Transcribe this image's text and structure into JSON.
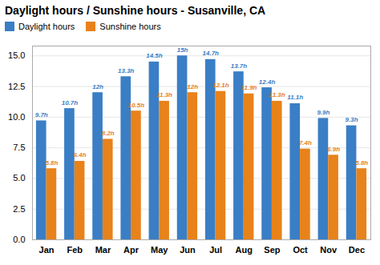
{
  "chart_data": {
    "type": "bar",
    "title": "Daylight hours / Sunshine hours - Susanville, CA",
    "categories": [
      "Jan",
      "Feb",
      "Mar",
      "Apr",
      "May",
      "Jun",
      "Jul",
      "Aug",
      "Sep",
      "Oct",
      "Nov",
      "Dec"
    ],
    "series": [
      {
        "name": "Daylight hours",
        "color": "#3a7ec6",
        "values": [
          9.7,
          10.7,
          12.0,
          13.3,
          14.5,
          15.0,
          14.7,
          13.7,
          12.4,
          11.1,
          9.9,
          9.3
        ],
        "value_labels": [
          "9.7h",
          "10.7h",
          "12h",
          "13.3h",
          "14.5h",
          "15h",
          "14.7h",
          "13.7h",
          "12.4h",
          "11.1h",
          "9.9h",
          "9.3h"
        ]
      },
      {
        "name": "Sunshine hours",
        "color": "#e8821a",
        "values": [
          5.8,
          6.4,
          8.2,
          10.5,
          11.3,
          12.0,
          12.1,
          11.9,
          11.3,
          7.4,
          6.9,
          5.8
        ],
        "value_labels": [
          "5.8h",
          "6.4h",
          "8.2h",
          "10.5h",
          "11.3h",
          "12h",
          "12.1h",
          "11.9h",
          "11.3h",
          "7.4h",
          "6.9h",
          "5.8h"
        ]
      }
    ],
    "ylim": [
      0,
      15.8
    ],
    "yticks": [
      {
        "value": 0,
        "label": "0.0"
      },
      2.5,
      {
        "value": 5,
        "label": "5.0"
      },
      7.5,
      {
        "value": 10,
        "label": "10.0"
      },
      12.5,
      {
        "value": 15,
        "label": "15.0"
      }
    ],
    "grid": true,
    "legend": "upper left",
    "data_labels": true
  }
}
